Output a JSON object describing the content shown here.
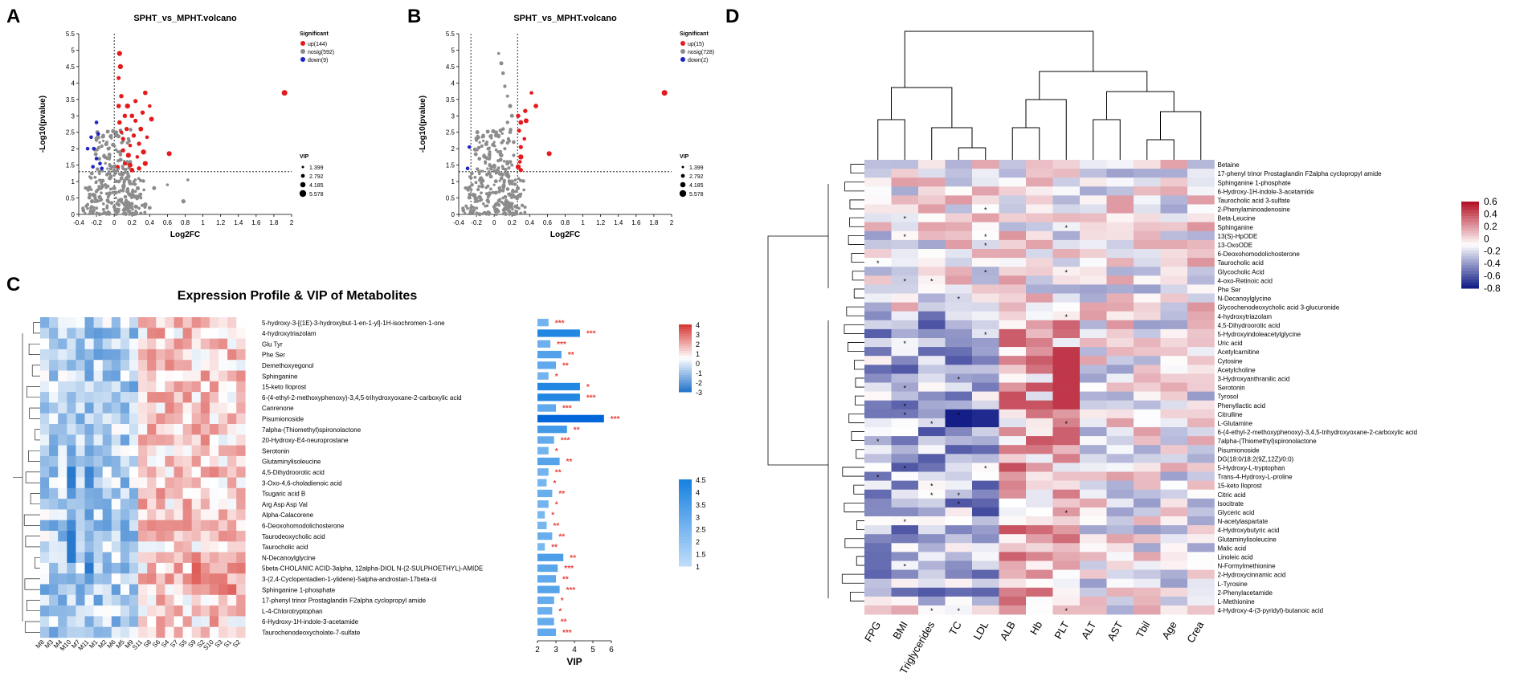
{
  "panels": {
    "A": "A",
    "B": "B",
    "C": "C",
    "D": "D"
  },
  "colors": {
    "up": "#e41a1c",
    "nosig": "#8c8c8c",
    "down": "#1f24c4",
    "star": "#e8413c"
  },
  "chart_data": [
    {
      "id": "A",
      "type": "scatter",
      "title": "SPHT_vs_MPHT.volcano",
      "xlabel": "Log2FC",
      "ylabel": "-Log10(pvalue)",
      "xlim": [
        -0.4,
        2
      ],
      "ylim": [
        0,
        5.5
      ],
      "xticks": [
        "-0.4",
        "-0.2",
        "0",
        "0.2",
        "0.4",
        "0.6",
        "0.8",
        "1",
        "1.2",
        "1.4",
        "1.6",
        "1.8",
        "2"
      ],
      "yticks": [
        "0",
        "0.5",
        "1",
        "1.5",
        "2",
        "2.5",
        "3",
        "3.5",
        "4",
        "4.5",
        "5",
        "5.5"
      ],
      "threshold_x": [
        0
      ],
      "threshold_y": 1.3,
      "legend_title": "Significant",
      "legend": [
        {
          "label": "up(144)",
          "group": "up"
        },
        {
          "label": "nosig(592)",
          "group": "nosig"
        },
        {
          "label": "down(9)",
          "group": "down"
        }
      ],
      "vip_title": "VIP",
      "vip_sizes": [
        "1.399",
        "2.792",
        "4.185",
        "5.578"
      ],
      "points_up": [
        [
          1.92,
          3.7
        ],
        [
          0.62,
          1.85
        ],
        [
          0.35,
          3.7
        ],
        [
          0.4,
          3.3
        ],
        [
          0.32,
          3.1
        ],
        [
          0.42,
          2.9
        ],
        [
          0.3,
          2.6
        ],
        [
          0.37,
          2.35
        ],
        [
          0.28,
          2.15
        ],
        [
          0.33,
          1.9
        ],
        [
          0.35,
          1.55
        ],
        [
          0.28,
          1.4
        ],
        [
          0.24,
          2.85
        ],
        [
          0.22,
          2.4
        ],
        [
          0.18,
          2.1
        ],
        [
          0.16,
          1.8
        ],
        [
          0.12,
          1.55
        ],
        [
          0.1,
          2.3
        ],
        [
          0.06,
          2.8
        ],
        [
          0.05,
          3.3
        ],
        [
          0.08,
          3.6
        ],
        [
          0.05,
          4.15
        ],
        [
          0.07,
          4.5
        ],
        [
          0.06,
          4.9
        ],
        [
          0.04,
          1.45
        ],
        [
          0.2,
          1.35
        ],
        [
          0.26,
          1.75
        ],
        [
          0.15,
          3.3
        ],
        [
          0.12,
          3.0
        ],
        [
          0.24,
          3.45
        ],
        [
          0.2,
          3.0
        ],
        [
          0.1,
          1.95
        ],
        [
          0.14,
          2.6
        ],
        [
          0.08,
          2.5
        ],
        [
          0.18,
          1.5
        ]
      ],
      "points_down": [
        [
          -0.2,
          2.8
        ],
        [
          -0.26,
          2.35
        ],
        [
          -0.18,
          2.45
        ],
        [
          -0.23,
          2.0
        ],
        [
          -0.3,
          2.0
        ],
        [
          -0.2,
          1.7
        ],
        [
          -0.16,
          1.55
        ],
        [
          -0.24,
          1.45
        ],
        [
          -0.14,
          1.4
        ]
      ],
      "points_nosig": [
        [
          0.0,
          1.2
        ],
        [
          -0.05,
          1.1
        ],
        [
          0.05,
          1.0
        ],
        [
          -0.1,
          0.9
        ],
        [
          0.1,
          0.85
        ],
        [
          0.15,
          0.7
        ],
        [
          -0.15,
          0.8
        ],
        [
          0.2,
          0.6
        ],
        [
          -0.2,
          0.7
        ],
        [
          0.25,
          0.55
        ],
        [
          0.02,
          0.5
        ],
        [
          0.08,
          0.45
        ],
        [
          -0.03,
          0.35
        ],
        [
          0.12,
          0.3
        ],
        [
          0.18,
          0.25
        ],
        [
          -0.08,
          0.2
        ],
        [
          0.05,
          0.15
        ],
        [
          0.3,
          0.5
        ],
        [
          0.35,
          0.3
        ],
        [
          0.4,
          0.2
        ],
        [
          -0.25,
          0.4
        ],
        [
          0.0,
          0.8
        ],
        [
          0.06,
          0.7
        ],
        [
          -0.06,
          0.6
        ],
        [
          0.14,
          1.1
        ],
        [
          0.22,
          1.0
        ],
        [
          0.45,
          0.8
        ],
        [
          0.6,
          0.9
        ],
        [
          0.78,
          0.4
        ],
        [
          0.83,
          1.05
        ],
        [
          0.03,
          0.05
        ],
        [
          0.16,
          0.1
        ],
        [
          -0.12,
          0.15
        ],
        [
          -0.3,
          0.3
        ],
        [
          0.1,
          1.25
        ],
        [
          -0.2,
          1.0
        ]
      ]
    },
    {
      "id": "B",
      "type": "scatter",
      "title": "SPHT_vs_MPHT.volcano",
      "xlabel": "Log2FC",
      "ylabel": "-Log10(pvalue)",
      "xlim": [
        -0.4,
        2
      ],
      "ylim": [
        0,
        5.5
      ],
      "xticks": [
        "-0.4",
        "-0.2",
        "0",
        "0.2",
        "0.4",
        "0.6",
        "0.8",
        "1",
        "1.2",
        "1.4",
        "1.6",
        "1.8",
        "2"
      ],
      "yticks": [
        "0",
        "0.5",
        "1",
        "1.5",
        "2",
        "2.5",
        "3",
        "3.5",
        "4",
        "4.5",
        "5",
        "5.5"
      ],
      "threshold_x": [
        -0.263,
        0.263
      ],
      "threshold_y": 1.3,
      "legend_title": "Significant",
      "legend": [
        {
          "label": "up(15)",
          "group": "up"
        },
        {
          "label": "nosig(728)",
          "group": "nosig"
        },
        {
          "label": "down(2)",
          "group": "down"
        }
      ],
      "vip_title": "VIP",
      "vip_sizes": [
        "1.399",
        "2.792",
        "4.185",
        "5.578"
      ],
      "points_up": [
        [
          1.92,
          3.7
        ],
        [
          0.62,
          1.85
        ],
        [
          0.47,
          3.3
        ],
        [
          0.42,
          3.7
        ],
        [
          0.35,
          3.15
        ],
        [
          0.36,
          2.85
        ],
        [
          0.3,
          2.8
        ],
        [
          0.34,
          2.3
        ],
        [
          0.3,
          2.05
        ],
        [
          0.3,
          1.75
        ],
        [
          0.27,
          1.45
        ],
        [
          0.3,
          1.35
        ],
        [
          0.28,
          2.55
        ],
        [
          0.27,
          3.0
        ],
        [
          0.29,
          1.6
        ]
      ],
      "points_down": [
        [
          -0.28,
          2.05
        ],
        [
          -0.3,
          1.4
        ]
      ],
      "points_nosig": [
        [
          0.05,
          4.9
        ],
        [
          0.08,
          4.6
        ],
        [
          0.1,
          4.3
        ],
        [
          0.12,
          3.9
        ],
        [
          0.15,
          3.6
        ],
        [
          0.18,
          3.3
        ],
        [
          0.2,
          3.0
        ],
        [
          0.15,
          2.8
        ],
        [
          0.1,
          2.6
        ],
        [
          0.05,
          2.4
        ],
        [
          0.0,
          2.2
        ],
        [
          0.18,
          2.5
        ],
        [
          0.22,
          2.2
        ],
        [
          0.12,
          2.0
        ],
        [
          0.08,
          1.8
        ],
        [
          -0.05,
          1.9
        ],
        [
          -0.1,
          1.6
        ],
        [
          0.0,
          1.5
        ],
        [
          0.04,
          1.3
        ],
        [
          0.14,
          1.2
        ],
        [
          0.2,
          1.0
        ],
        [
          -0.15,
          1.1
        ],
        [
          0.0,
          0.9
        ],
        [
          0.06,
          0.8
        ],
        [
          -0.06,
          0.6
        ],
        [
          0.1,
          0.5
        ],
        [
          0.02,
          0.3
        ],
        [
          -0.1,
          0.25
        ],
        [
          0.15,
          0.2
        ],
        [
          -0.2,
          0.5
        ],
        [
          0.25,
          0.7
        ],
        [
          -0.25,
          0.9
        ],
        [
          0.2,
          1.5
        ],
        [
          0.22,
          1.8
        ]
      ]
    },
    {
      "id": "C-heatmap",
      "type": "heatmap",
      "title": "Expression Profile & VIP of Metabolites",
      "columns": [
        "M8",
        "M3",
        "M4",
        "M10",
        "M7",
        "M11",
        "M1",
        "M2",
        "M6",
        "M5",
        "M9",
        "S11",
        "S8",
        "S6",
        "S4",
        "S7",
        "S5",
        "S9",
        "S2",
        "S10",
        "S3",
        "S1",
        "S2"
      ],
      "rows": [
        "5-hydroxy-3-[(1E)-3-hydroxybut-1-en-1-yl]-1H-isochromen-1-one",
        "4-hydroxytriazolam",
        "Glu Tyr",
        "Phe Ser",
        "Demethoxyegonol",
        "Sphinganine",
        "15-keto Iloprost",
        "6-(4-ethyl-2-methoxyphenoxy)-3,4,5-trihydroxyoxane-2-carboxylic acid",
        "Canrenone",
        "Pisumionoside",
        "7alpha-(Thiomethyl)spironolactone",
        "20-Hydroxy-E4-neuroprostane",
        "Serotonin",
        "Glutaminylisoleucine",
        "4,5-Dihydroorotic acid",
        "3-Oxo-4,6-choladienoic acid",
        "Tsugaric acid B",
        "Arg Asp Asp Val",
        "Alpha-Calacorene",
        "6-Deoxohomodolichosterone",
        "Taurodeoxycholic acid",
        "Taurocholic acid",
        "N-Decanoylglycine",
        "5beta-CHOLANIC ACID-3alpha, 12alpha-DIOL N-(2-SULPHOETHYL)-AMIDE",
        "3-(2,4-Cyclopentadien-1-ylidene)-5alpha-androstan-17beta-ol",
        "Sphinganine 1-phosphate",
        "17-phenyl trinor Prostaglandin F2alpha cyclopropyl amide",
        "L-4-Chlorotryptophan",
        "6-Hydroxy-1H-indole-3-acetamide",
        "Taurochenodeoxycholate-7-sulfate"
      ],
      "colorbar_ticks": [
        "4",
        "3",
        "2",
        "1",
        "0",
        "-1",
        "-2",
        "-3"
      ],
      "vip_colorbar_ticks": [
        "4.5",
        "4",
        "3.5",
        "3",
        "2.5",
        "2",
        "1.5",
        "1"
      ]
    },
    {
      "id": "C-vip",
      "type": "bar",
      "xlabel": "VIP",
      "xlim": [
        2,
        6
      ],
      "xticks": [
        "2",
        "3",
        "4",
        "5",
        "6"
      ],
      "values": [
        2.6,
        4.3,
        2.7,
        3.3,
        3.0,
        2.6,
        4.3,
        4.3,
        3.0,
        5.6,
        3.6,
        2.9,
        2.6,
        3.2,
        2.6,
        2.5,
        2.8,
        2.6,
        2.4,
        2.5,
        2.8,
        2.4,
        3.4,
        3.1,
        3.0,
        3.2,
        2.9,
        2.8,
        2.9,
        3.0
      ],
      "stars": [
        "***",
        "***",
        "***",
        "**",
        "**",
        "*",
        "*",
        "***",
        "***",
        "***",
        "**",
        "***",
        "*",
        "**",
        "**",
        "*",
        "**",
        "*",
        "*",
        "**",
        "**",
        "**",
        "**",
        "***",
        "**",
        "***",
        "*",
        "*",
        "**",
        "***"
      ]
    },
    {
      "id": "D",
      "type": "heatmap",
      "title": "",
      "columns": [
        "FPG",
        "BMI",
        "Triglycerides",
        "TC",
        "LDL",
        "ALB",
        "Hb",
        "PLT",
        "ALT",
        "AST",
        "Tbil",
        "Age",
        "Crea"
      ],
      "rows": [
        "Betaine",
        "17-phenyl trinor Prostaglandin F2alpha cyclopropyl amide",
        "Sphinganine 1-phosphate",
        "6-Hydroxy-1H-indole-3-acetamide",
        "Taurocholic acid 3-sulfate",
        "2-Phenylaminoadenosine",
        "Beta-Leucine",
        "Sphinganine",
        "13(S)-HpODE",
        "13-OxoODE",
        "6-Deoxohomodolichosterone",
        "Taurocholic acid",
        "Glycocholic Acid",
        "4-oxo-Retinoic acid",
        "Phe Ser",
        "N-Decanoylglycine",
        "Glycochenodeoxycholic acid 3-glucuronide",
        "4-hydroxytriazolam",
        "4,5-Dihydroorotic acid",
        "5-Hydroxyindoleacetylglycine",
        "Uric acid",
        "Acetylcarnitine",
        "Cytosine",
        "Acetylcholine",
        "3-Hydroxyanthranilic acid",
        "Serotonin",
        "Tyrosol",
        "Phenyllactic acid",
        "Citrulline",
        "L-Glutamine",
        "6-(4-ethyl-2-methoxyphenoxy)-3,4,5-trihydroxyoxane-2-carboxylic acid",
        "7alpha-(Thiomethyl)spironolactone",
        "Pisumionoside",
        "DG(18:0/18:2(9Z,12Z)/0:0)",
        "5-Hydroxy-L-tryptophan",
        "Trans-4-Hydroxy-L-proline",
        "15-keto Iloprost",
        "Citric acid",
        "Isocitrate",
        "Glyceric acid",
        "N-acetylaspartate",
        "4-Hydroxybutyric acid",
        "Glutaminylisoleucine",
        "Malic acid",
        "Linoleic acid",
        "N-Formylmethionine",
        "2-Hydroxycinnamic acid",
        "L-Tyrosine",
        "2-Phenylacetamide",
        "L-Methionine",
        "4-Hydroxy-4-(3-pyridyl)-butanoic acid"
      ],
      "colorbar_ticks": [
        "0.6",
        "0.4",
        "0.2",
        "0",
        "-0.2",
        "-0.4",
        "-0.6",
        "-0.8"
      ]
    }
  ]
}
